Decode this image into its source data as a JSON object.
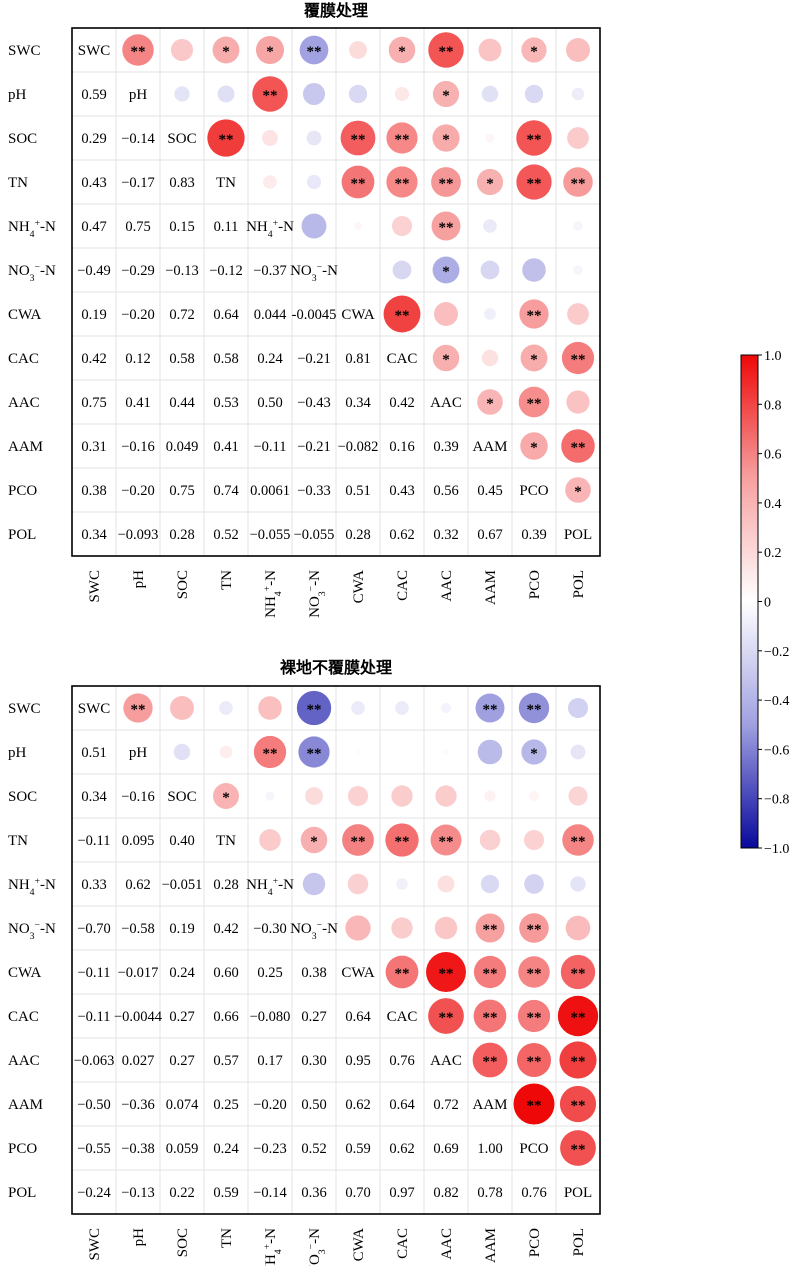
{
  "chart_data": [
    {
      "type": "heatmap",
      "title": "覆膜处理",
      "variables": [
        "SWC",
        "pH",
        "SOC",
        "TN",
        "NH4+-N",
        "NO3−-N",
        "CWA",
        "CAC",
        "AAC",
        "AAM",
        "PCO",
        "POL"
      ],
      "lower_triangle_values": [
        [],
        [
          0.59
        ],
        [
          0.29,
          -0.14
        ],
        [
          0.43,
          -0.17,
          0.83
        ],
        [
          0.47,
          0.75,
          0.15,
          0.11
        ],
        [
          -0.49,
          -0.29,
          -0.13,
          -0.12,
          -0.37
        ],
        [
          0.19,
          -0.2,
          0.72,
          0.64,
          0.044,
          -0.0045
        ],
        [
          0.42,
          0.12,
          0.58,
          0.58,
          0.24,
          -0.21,
          0.81
        ],
        [
          0.75,
          0.41,
          0.44,
          0.53,
          0.5,
          -0.43,
          0.34,
          0.42
        ],
        [
          0.31,
          -0.16,
          0.049,
          0.41,
          -0.11,
          -0.21,
          -0.082,
          0.16,
          0.39
        ],
        [
          0.38,
          -0.2,
          0.75,
          0.74,
          0.0061,
          -0.33,
          0.51,
          0.43,
          0.56,
          0.45
        ],
        [
          0.34,
          -0.093,
          0.28,
          0.52,
          -0.055,
          -0.055,
          0.28,
          0.62,
          0.32,
          0.67,
          0.39
        ]
      ],
      "lower_triangle_labels": [
        [],
        [
          "0.59"
        ],
        [
          "0.29",
          "−0.14"
        ],
        [
          "0.43",
          "−0.17",
          "0.83"
        ],
        [
          "0.47",
          "0.75",
          "0.15",
          "0.11"
        ],
        [
          "−0.49",
          "−0.29",
          "−0.13",
          "−0.12",
          "−0.37"
        ],
        [
          "0.19",
          "−0.20",
          "0.72",
          "0.64",
          "0.044",
          "-0.0045"
        ],
        [
          "0.42",
          "0.12",
          "0.58",
          "0.58",
          "0.24",
          "−0.21",
          "0.81"
        ],
        [
          "0.75",
          "0.41",
          "0.44",
          "0.53",
          "0.50",
          "−0.43",
          "0.34",
          "0.42"
        ],
        [
          "0.31",
          "−0.16",
          "0.049",
          "0.41",
          "−0.11",
          "−0.21",
          "−0.082",
          "0.16",
          "0.39"
        ],
        [
          "0.38",
          "−0.20",
          "0.75",
          "0.74",
          "0.0061",
          "−0.33",
          "0.51",
          "0.43",
          "0.56",
          "0.45"
        ],
        [
          "0.34",
          "−0.093",
          "0.28",
          "0.52",
          "−0.055",
          "−0.055",
          "0.28",
          "0.62",
          "0.32",
          "0.67",
          "0.39"
        ]
      ],
      "significance": [
        [
          null,
          "**",
          "",
          "*",
          "*",
          "**",
          "",
          "*",
          "**",
          "",
          "*",
          ""
        ],
        [
          null,
          null,
          "",
          "",
          "**",
          "",
          "",
          "",
          "*",
          "",
          "",
          ""
        ],
        [
          null,
          null,
          null,
          "**",
          "",
          "",
          "**",
          "**",
          "*",
          "",
          "**",
          ""
        ],
        [
          null,
          null,
          null,
          null,
          "",
          "",
          "**",
          "**",
          "**",
          "*",
          "**",
          "**"
        ],
        [
          null,
          null,
          null,
          null,
          null,
          "",
          "",
          "",
          "**",
          "",
          "",
          ""
        ],
        [
          null,
          null,
          null,
          null,
          null,
          null,
          "",
          "",
          "*",
          "",
          "",
          ""
        ],
        [
          null,
          null,
          null,
          null,
          null,
          null,
          null,
          "**",
          "",
          "",
          "**",
          ""
        ],
        [
          null,
          null,
          null,
          null,
          null,
          null,
          null,
          null,
          "*",
          "",
          "*",
          "**"
        ],
        [
          null,
          null,
          null,
          null,
          null,
          null,
          null,
          null,
          null,
          "*",
          "**",
          ""
        ],
        [
          null,
          null,
          null,
          null,
          null,
          null,
          null,
          null,
          null,
          null,
          "*",
          "**"
        ],
        [
          null,
          null,
          null,
          null,
          null,
          null,
          null,
          null,
          null,
          null,
          null,
          "*"
        ],
        [
          null,
          null,
          null,
          null,
          null,
          null,
          null,
          null,
          null,
          null,
          null,
          null
        ]
      ]
    },
    {
      "type": "heatmap",
      "title": "裸地不覆膜处理",
      "variables": [
        "SWC",
        "pH",
        "SOC",
        "TN",
        "NH4+-N",
        "NO3−-N",
        "CWA",
        "CAC",
        "AAC",
        "AAM",
        "PCO",
        "POL"
      ],
      "lower_triangle_values": [
        [],
        [
          0.51
        ],
        [
          0.34,
          -0.16
        ],
        [
          -0.11,
          0.095,
          0.4
        ],
        [
          0.33,
          0.62,
          -0.051,
          0.28
        ],
        [
          -0.7,
          -0.58,
          0.19,
          0.42,
          -0.3
        ],
        [
          -0.11,
          -0.017,
          0.24,
          0.6,
          0.25,
          0.38
        ],
        [
          -0.11,
          -0.0044,
          0.27,
          0.66,
          -0.08,
          0.27,
          0.64
        ],
        [
          -0.063,
          0.027,
          0.27,
          0.57,
          0.17,
          0.3,
          0.95,
          0.76
        ],
        [
          -0.5,
          -0.36,
          0.074,
          0.25,
          -0.2,
          0.5,
          0.62,
          0.64,
          0.72
        ],
        [
          -0.55,
          -0.38,
          0.059,
          0.24,
          -0.23,
          0.52,
          0.59,
          0.62,
          0.69,
          1.0
        ],
        [
          -0.24,
          -0.13,
          0.22,
          0.59,
          -0.14,
          0.36,
          0.7,
          0.97,
          0.82,
          0.78,
          0.76
        ]
      ],
      "lower_triangle_labels": [
        [],
        [
          "0.51"
        ],
        [
          "0.34",
          "−0.16"
        ],
        [
          "−0.11",
          "0.095",
          "0.40"
        ],
        [
          "0.33",
          "0.62",
          "−0.051",
          "0.28"
        ],
        [
          "−0.70",
          "−0.58",
          "0.19",
          "0.42",
          "−0.30"
        ],
        [
          "−0.11",
          "−0.017",
          "0.24",
          "0.60",
          "0.25",
          "0.38"
        ],
        [
          "−0.11",
          "−0.0044",
          "0.27",
          "0.66",
          "−0.080",
          "0.27",
          "0.64"
        ],
        [
          "−0.063",
          "0.027",
          "0.27",
          "0.57",
          "0.17",
          "0.30",
          "0.95",
          "0.76"
        ],
        [
          "−0.50",
          "−0.36",
          "0.074",
          "0.25",
          "−0.20",
          "0.50",
          "0.62",
          "0.64",
          "0.72"
        ],
        [
          "−0.55",
          "−0.38",
          "0.059",
          "0.24",
          "−0.23",
          "0.52",
          "0.59",
          "0.62",
          "0.69",
          "1.00"
        ],
        [
          "−0.24",
          "−0.13",
          "0.22",
          "0.59",
          "−0.14",
          "0.36",
          "0.70",
          "0.97",
          "0.82",
          "0.78",
          "0.76"
        ]
      ],
      "significance": [
        [
          null,
          "**",
          "",
          "",
          "",
          "**",
          "",
          "",
          "",
          "**",
          "**",
          ""
        ],
        [
          null,
          null,
          "",
          "",
          "**",
          "**",
          "",
          "",
          "",
          "",
          "*",
          ""
        ],
        [
          null,
          null,
          null,
          "*",
          "",
          "",
          "",
          "",
          "",
          "",
          "",
          ""
        ],
        [
          null,
          null,
          null,
          null,
          "",
          "*",
          "**",
          "**",
          "**",
          "",
          "",
          "**"
        ],
        [
          null,
          null,
          null,
          null,
          null,
          "",
          "",
          "",
          "",
          "",
          "",
          ""
        ],
        [
          null,
          null,
          null,
          null,
          null,
          null,
          "",
          "",
          "",
          "**",
          "**",
          ""
        ],
        [
          null,
          null,
          null,
          null,
          null,
          null,
          null,
          "**",
          "**",
          "**",
          "**",
          "**"
        ],
        [
          null,
          null,
          null,
          null,
          null,
          null,
          null,
          null,
          "**",
          "**",
          "**",
          "**"
        ],
        [
          null,
          null,
          null,
          null,
          null,
          null,
          null,
          null,
          null,
          "**",
          "**",
          "**"
        ],
        [
          null,
          null,
          null,
          null,
          null,
          null,
          null,
          null,
          null,
          null,
          "**",
          "**"
        ],
        [
          null,
          null,
          null,
          null,
          null,
          null,
          null,
          null,
          null,
          null,
          null,
          "**"
        ],
        [
          null,
          null,
          null,
          null,
          null,
          null,
          null,
          null,
          null,
          null,
          null,
          null
        ]
      ]
    }
  ],
  "colorbar": {
    "ticks": [
      1.0,
      0.8,
      0.6,
      0.4,
      0.2,
      0,
      -0.2,
      -0.4,
      -0.6,
      -0.8,
      -1.0
    ],
    "tick_labels": [
      "1.0",
      "0.8",
      "0.6",
      "0.4",
      "0.2",
      "0",
      "−0.2",
      "−0.4",
      "−0.6",
      "−0.8",
      "−1.0"
    ],
    "range": [
      -1.0,
      1.0
    ],
    "colors": {
      "negative": "#08089c",
      "zero": "#ffffff",
      "positive": "#ee0808"
    }
  }
}
